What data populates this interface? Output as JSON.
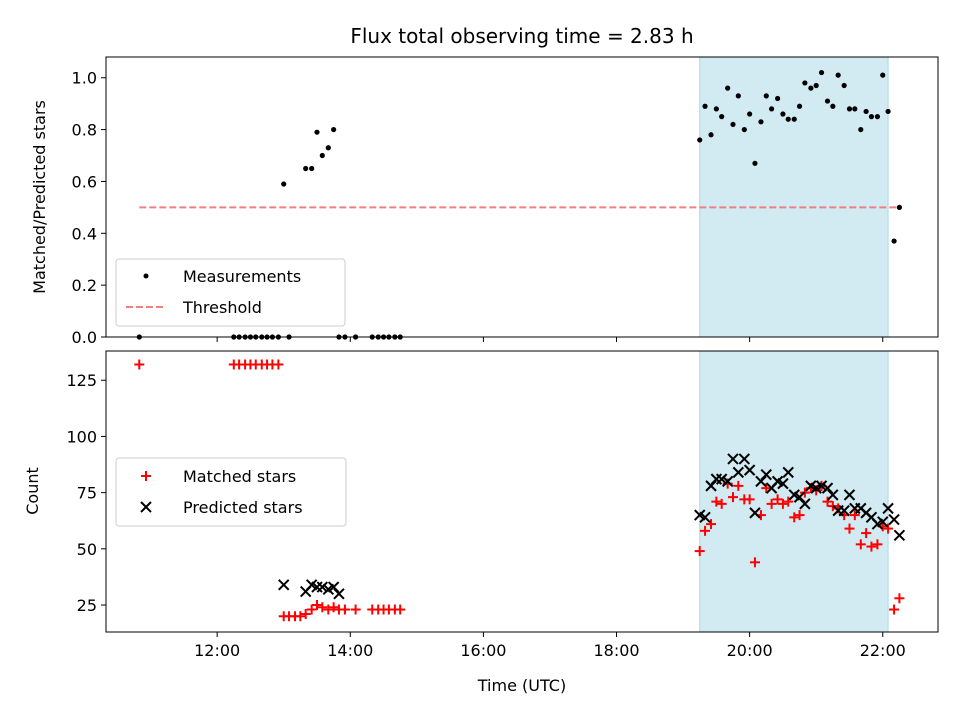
{
  "title": "Flux total observing time = 2.83 h",
  "shade_color": "#add8e6",
  "top_panel": {
    "ylabel": "Matched/Predicted stars",
    "ylim": [
      0,
      1.08
    ],
    "yticks": [
      0.0,
      0.2,
      0.4,
      0.6,
      0.8,
      1.0
    ],
    "ytick_labels": [
      "0.0",
      "0.2",
      "0.4",
      "0.6",
      "0.8",
      "1.0"
    ],
    "legend": {
      "measurements": "Measurements",
      "threshold": "Threshold"
    }
  },
  "bottom_panel": {
    "ylabel": "Count",
    "ylim": [
      13,
      138
    ],
    "yticks": [
      25,
      50,
      75,
      100,
      125
    ],
    "ytick_labels": [
      "25",
      "50",
      "75",
      "100",
      "125"
    ],
    "legend": {
      "matched": "Matched stars",
      "predicted": "Predicted stars"
    }
  },
  "xaxis": {
    "label": "Time (UTC)",
    "xlim": [
      10.33,
      22.83
    ],
    "ticks": [
      12,
      14,
      16,
      18,
      20,
      22
    ],
    "tick_labels": [
      "12:00",
      "14:00",
      "16:00",
      "18:00",
      "20:00",
      "22:00"
    ]
  },
  "chart_data": [
    {
      "type": "scatter",
      "title": "Flux total observing time = 2.83 h",
      "ylabel": "Matched/Predicted stars",
      "xlabel": "",
      "x_unit": "hours UTC",
      "ylim": [
        0,
        1.08
      ],
      "shaded_span": [
        19.25,
        22.08
      ],
      "legend_position": "lower-left",
      "threshold": {
        "name": "Threshold",
        "value": 0.5,
        "x_range": [
          10.83,
          22.25
        ],
        "color": "#f08080",
        "style": "dashed"
      },
      "series": [
        {
          "name": "Measurements",
          "color": "#000000",
          "marker": "dot",
          "x": [
            10.83,
            12.25,
            12.33,
            12.42,
            12.5,
            12.58,
            12.67,
            12.75,
            12.83,
            12.92,
            13.0,
            13.08,
            13.33,
            13.42,
            13.5,
            13.58,
            13.67,
            13.75,
            13.83,
            13.92,
            14.08,
            14.33,
            14.42,
            14.5,
            14.58,
            14.67,
            14.75,
            19.25,
            19.33,
            19.42,
            19.5,
            19.58,
            19.67,
            19.75,
            19.83,
            19.92,
            20.0,
            20.08,
            20.17,
            20.25,
            20.33,
            20.42,
            20.5,
            20.58,
            20.67,
            20.75,
            20.83,
            20.92,
            21.0,
            21.08,
            21.17,
            21.25,
            21.33,
            21.42,
            21.5,
            21.58,
            21.67,
            21.75,
            21.83,
            21.92,
            22.0,
            22.08,
            22.17,
            22.25
          ],
          "y": [
            0.0,
            0.0,
            0.0,
            0.0,
            0.0,
            0.0,
            0.0,
            0.0,
            0.0,
            0.0,
            0.59,
            0.0,
            0.65,
            0.65,
            0.79,
            0.7,
            0.73,
            0.8,
            0.0,
            0.0,
            0.0,
            0.0,
            0.0,
            0.0,
            0.0,
            0.0,
            0.0,
            0.76,
            0.89,
            0.78,
            0.88,
            0.85,
            0.96,
            0.82,
            0.93,
            0.8,
            0.86,
            0.67,
            0.83,
            0.93,
            0.88,
            0.92,
            0.86,
            0.84,
            0.84,
            0.89,
            0.98,
            0.96,
            0.97,
            1.02,
            0.91,
            0.89,
            1.01,
            0.97,
            0.88,
            0.88,
            0.8,
            0.87,
            0.85,
            0.85,
            1.01,
            0.87,
            0.37,
            0.5
          ]
        }
      ]
    },
    {
      "type": "scatter",
      "title": "",
      "ylabel": "Count",
      "xlabel": "Time (UTC)",
      "x_unit": "hours UTC",
      "ylim": [
        13,
        138
      ],
      "shaded_span": [
        19.25,
        22.08
      ],
      "legend_position": "center-left",
      "series": [
        {
          "name": "Matched stars",
          "color": "#ff0000",
          "marker": "plus",
          "x": [
            10.83,
            12.25,
            12.33,
            12.42,
            12.5,
            12.58,
            12.67,
            12.75,
            12.83,
            12.92,
            13.0,
            13.08,
            13.17,
            13.25,
            13.33,
            13.42,
            13.5,
            13.58,
            13.67,
            13.75,
            13.83,
            13.92,
            14.08,
            14.33,
            14.42,
            14.5,
            14.58,
            14.67,
            14.75,
            19.25,
            19.33,
            19.42,
            19.5,
            19.58,
            19.67,
            19.75,
            19.83,
            19.92,
            20.0,
            20.08,
            20.17,
            20.25,
            20.33,
            20.42,
            20.5,
            20.58,
            20.67,
            20.75,
            20.83,
            20.92,
            21.0,
            21.08,
            21.17,
            21.25,
            21.33,
            21.42,
            21.5,
            21.58,
            21.67,
            21.75,
            21.83,
            21.92,
            22.0,
            22.08,
            22.17,
            22.25
          ],
          "y": [
            132,
            132,
            132,
            132,
            132,
            132,
            132,
            132,
            132,
            132,
            20,
            20,
            20,
            20,
            21,
            23,
            25,
            24,
            23,
            24,
            23,
            23,
            23,
            23,
            23,
            23,
            23,
            23,
            23,
            49,
            58,
            61,
            71,
            70,
            79,
            73,
            78,
            72,
            72,
            44,
            65,
            77,
            70,
            72,
            70,
            71,
            64,
            65,
            75,
            77,
            76,
            78,
            71,
            69,
            68,
            65,
            59,
            65,
            52,
            57,
            51,
            52,
            60,
            59,
            23,
            28
          ]
        },
        {
          "name": "Predicted stars",
          "color": "#000000",
          "marker": "x",
          "x": [
            13.0,
            13.33,
            13.42,
            13.5,
            13.58,
            13.67,
            13.75,
            13.83,
            19.25,
            19.33,
            19.42,
            19.5,
            19.58,
            19.67,
            19.75,
            19.83,
            19.92,
            20.0,
            20.08,
            20.17,
            20.25,
            20.33,
            20.42,
            20.5,
            20.58,
            20.67,
            20.75,
            20.83,
            20.92,
            21.0,
            21.08,
            21.17,
            21.25,
            21.33,
            21.42,
            21.5,
            21.58,
            21.67,
            21.75,
            21.83,
            21.92,
            22.0,
            22.08,
            22.17,
            22.25
          ],
          "y": [
            34,
            31,
            34,
            33,
            33,
            32,
            33,
            30,
            65,
            64,
            78,
            81,
            81,
            80,
            90,
            84,
            90,
            85,
            66,
            80,
            83,
            77,
            80,
            79,
            84,
            74,
            73,
            70,
            78,
            77,
            78,
            77,
            74,
            67,
            67,
            74,
            68,
            68,
            66,
            64,
            61,
            62,
            68,
            63,
            56
          ]
        }
      ]
    }
  ]
}
